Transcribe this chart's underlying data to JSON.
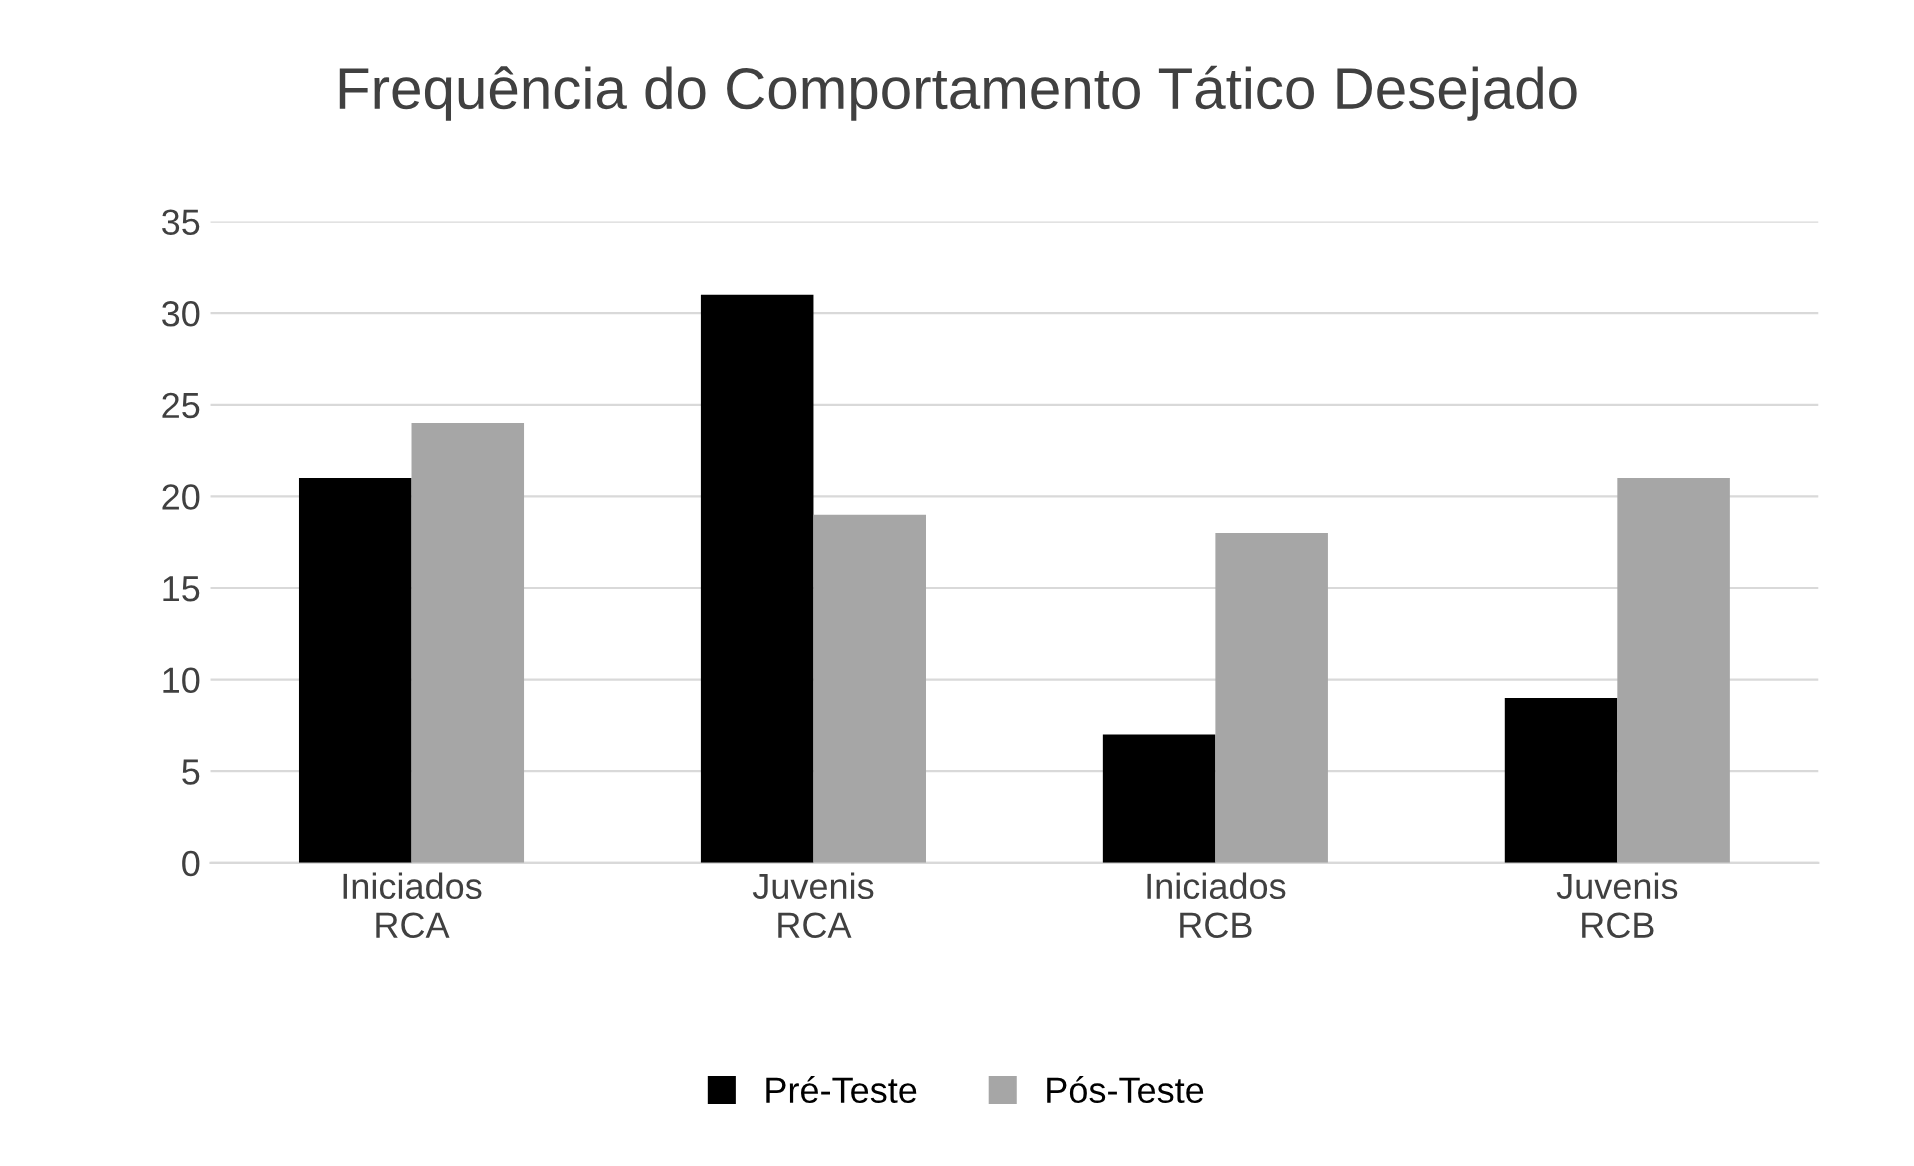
{
  "chart_data": {
    "type": "bar",
    "title": "Frequência do Comportamento Tático Desejado",
    "categories": [
      "Iniciados\nRCA",
      "Juvenis\nRCA",
      "Iniciados\nRCB",
      "Juvenis\nRCB"
    ],
    "series": [
      {
        "name": "Pré-Teste",
        "color": "#000000",
        "values": [
          21,
          31,
          7,
          9
        ]
      },
      {
        "name": "Pós-Teste",
        "color": "#a6a6a6",
        "values": [
          24,
          19,
          18,
          21
        ]
      }
    ],
    "ylim": [
      0,
      35
    ],
    "yticks": [
      0,
      5,
      10,
      15,
      20,
      25,
      30,
      35
    ],
    "grid": "y",
    "legend": "bottom"
  }
}
